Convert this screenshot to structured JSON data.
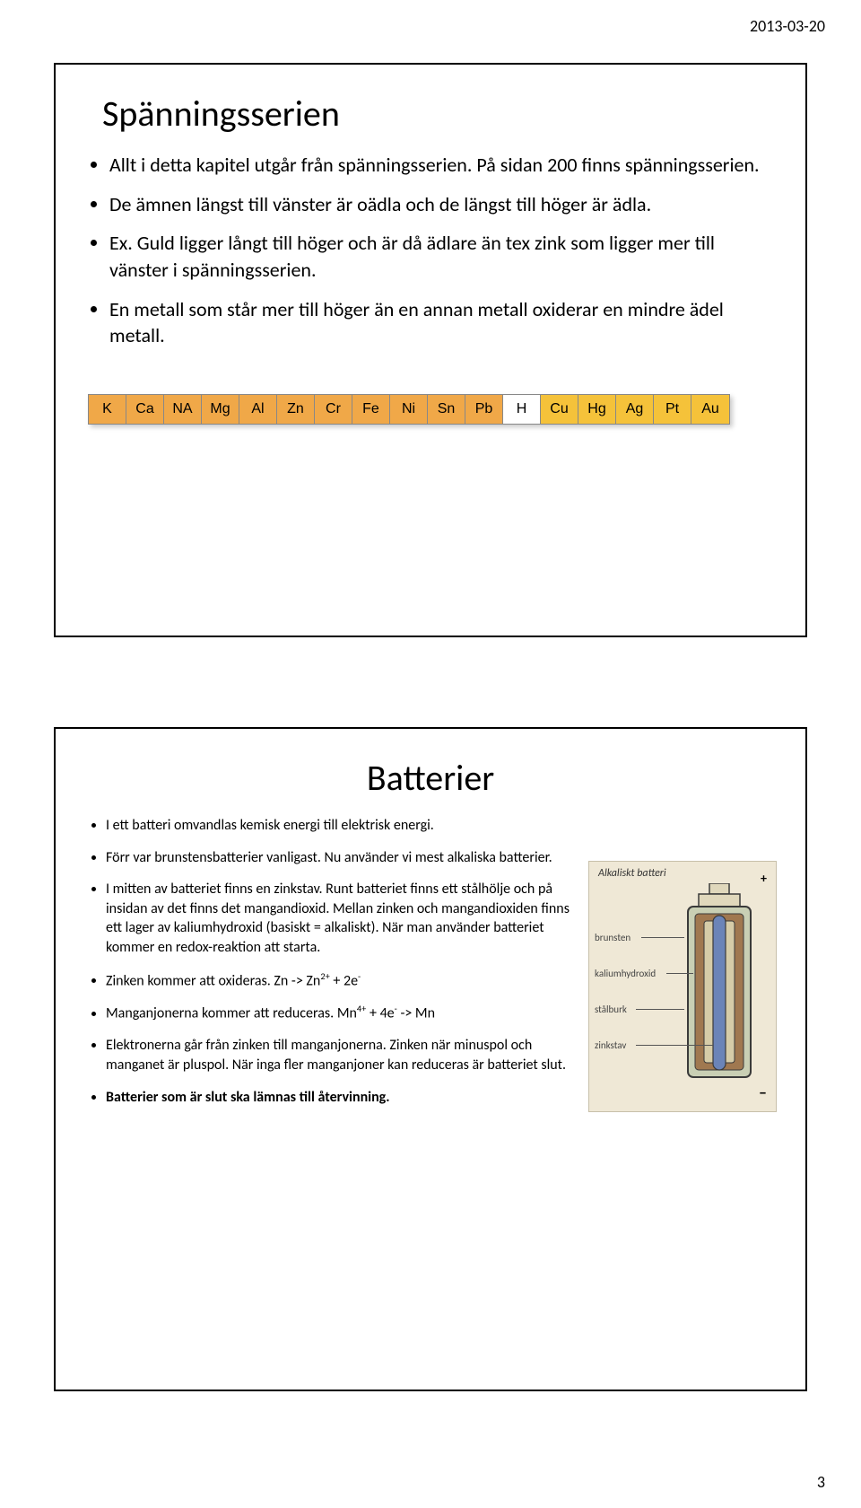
{
  "page": {
    "date": "2013-03-20",
    "number": "3"
  },
  "slide1": {
    "title": "Spänningsserien",
    "bullets": [
      "Allt i detta kapitel utgår från spänningsserien. På sidan 200 finns spänningsserien.",
      "De ämnen längst till vänster är oädla och de längst till höger är ädla.",
      "Ex. Guld ligger långt till höger och är då ädlare än tex zink som ligger mer till vänster i spänningsserien.",
      "En metall som står mer till höger än en annan metall oxiderar en mindre ädel metall."
    ],
    "elements": [
      {
        "sym": "K",
        "bg": "#f0a848"
      },
      {
        "sym": "Ca",
        "bg": "#f0a848"
      },
      {
        "sym": "NA",
        "bg": "#f0a848"
      },
      {
        "sym": "Mg",
        "bg": "#f0a848"
      },
      {
        "sym": "Al",
        "bg": "#f0a848"
      },
      {
        "sym": "Zn",
        "bg": "#f0a848"
      },
      {
        "sym": "Cr",
        "bg": "#f0a848"
      },
      {
        "sym": "Fe",
        "bg": "#f0a848"
      },
      {
        "sym": "Ni",
        "bg": "#f0a848"
      },
      {
        "sym": "Sn",
        "bg": "#f0a848"
      },
      {
        "sym": "Pb",
        "bg": "#f0a848"
      },
      {
        "sym": "H",
        "bg": "#ffffff"
      },
      {
        "sym": "Cu",
        "bg": "#f5c23a"
      },
      {
        "sym": "Hg",
        "bg": "#f5c23a"
      },
      {
        "sym": "Ag",
        "bg": "#f5c23a"
      },
      {
        "sym": "Pt",
        "bg": "#f5c23a"
      },
      {
        "sym": "Au",
        "bg": "#f5c23a"
      }
    ]
  },
  "slide2": {
    "title": "Batterier",
    "bullets_html": [
      "I ett batteri omvandlas kemisk energi till elektrisk energi.",
      "Förr var brunstensbatterier vanligast. Nu använder vi mest alkaliska batterier.",
      "I mitten av batteriet finns en zinkstav. Runt batteriet finns ett stålhölje och på insidan av det finns det mangandioxid. Mellan zinken och mangandioxiden finns ett lager av kaliumhydroxid (basiskt = alkaliskt). När man använder batteriet kommer en redox-reaktion att starta.",
      "Zinken kommer att oxideras. Zn -> Zn<sup>2+</sup> + 2e<sup>-</sup>",
      "Manganjonerna kommer att reduceras. Mn<sup>4+</sup> + 4e<sup>-</sup> -> Mn",
      "Elektronerna går från zinken till manganjonerna. Zinken när minuspol och manganet är pluspol. När inga fler manganjoner kan reduceras är batteriet slut.",
      "<b>Batterier som är slut ska lämnas till återvinning.</b>"
    ],
    "figure": {
      "caption": "Alkaliskt batteri",
      "labels": {
        "brunsten": "brunsten",
        "kalium": "kaliumhydroxid",
        "stalburk": "stålburk",
        "zinkstav": "zinkstav"
      },
      "colors": {
        "outer_stroke": "#3a3a3a",
        "outer_fill": "#c9cfb4",
        "mangan_fill": "#a07850",
        "kalium_fill": "#d6cca8",
        "zinc_fill": "#6b84b8",
        "cap_fill": "#e0d8bc"
      }
    }
  }
}
